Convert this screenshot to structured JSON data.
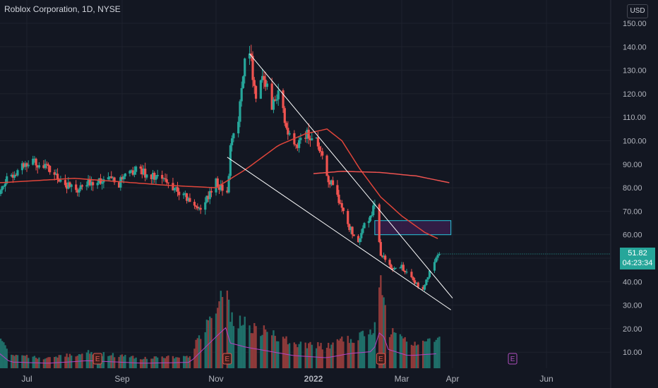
{
  "header": {
    "title": "Roblox Corporation, 1D, NYSE",
    "currency": "USD"
  },
  "price_badge": {
    "price": "51.82",
    "countdown": "04:23:34"
  },
  "colors": {
    "background": "#131722",
    "up": "#26a69a",
    "down": "#ef5350",
    "ma50": "#e0453a",
    "ma200": "#ef5350",
    "volume_ma": "#b543c4",
    "trendline": "#ffffff",
    "zone_fill": "#3a1f4f",
    "zone_stroke": "#26c6da",
    "earnings": "#e05a4e",
    "earnings_future": "#b04fc0"
  },
  "chart_data": {
    "type": "candlestick",
    "title": "Roblox Corporation, 1D, NYSE",
    "y_axis": {
      "ticks": [
        "10.00",
        "20.00",
        "30.00",
        "40.00",
        "50.00",
        "60.00",
        "70.00",
        "80.00",
        "90.00",
        "100.00",
        "110.00",
        "120.00",
        "130.00",
        "140.00",
        "150.00"
      ],
      "ylim": [
        5,
        155
      ]
    },
    "x_axis": {
      "ticks": [
        {
          "label": "Jul",
          "date": "2021-07-01"
        },
        {
          "label": "Sep",
          "date": "2021-09-01"
        },
        {
          "label": "Nov",
          "date": "2021-11-01"
        },
        {
          "label": "2022",
          "date": "2022-01-01"
        },
        {
          "label": "Mar",
          "date": "2022-03-01"
        },
        {
          "label": "Apr",
          "date": "2022-04-01"
        },
        {
          "label": "Jun",
          "date": "2022-06-01"
        }
      ]
    },
    "price_keypoints": [
      {
        "date": "2021-06-10",
        "close": 78
      },
      {
        "date": "2021-06-25",
        "close": 88
      },
      {
        "date": "2021-07-05",
        "close": 92
      },
      {
        "date": "2021-07-20",
        "close": 85
      },
      {
        "date": "2021-08-02",
        "close": 78
      },
      {
        "date": "2021-08-15",
        "close": 84
      },
      {
        "date": "2021-08-30",
        "close": 82
      },
      {
        "date": "2021-09-10",
        "close": 88
      },
      {
        "date": "2021-09-25",
        "close": 84
      },
      {
        "date": "2021-10-05",
        "close": 80
      },
      {
        "date": "2021-10-15",
        "close": 74
      },
      {
        "date": "2021-10-22",
        "close": 71
      },
      {
        "date": "2021-11-01",
        "close": 82
      },
      {
        "date": "2021-11-08",
        "close": 78
      },
      {
        "date": "2021-11-10",
        "close": 96
      },
      {
        "date": "2021-11-15",
        "close": 110
      },
      {
        "date": "2021-11-19",
        "close": 135
      },
      {
        "date": "2021-11-22",
        "close": 140
      },
      {
        "date": "2021-11-26",
        "close": 118
      },
      {
        "date": "2021-12-01",
        "close": 128
      },
      {
        "date": "2021-12-06",
        "close": 115
      },
      {
        "date": "2021-12-10",
        "close": 122
      },
      {
        "date": "2021-12-15",
        "close": 105
      },
      {
        "date": "2021-12-20",
        "close": 97
      },
      {
        "date": "2021-12-27",
        "close": 103
      },
      {
        "date": "2022-01-03",
        "close": 100
      },
      {
        "date": "2022-01-10",
        "close": 85
      },
      {
        "date": "2022-01-18",
        "close": 75
      },
      {
        "date": "2022-01-25",
        "close": 63
      },
      {
        "date": "2022-01-31",
        "close": 58
      },
      {
        "date": "2022-02-05",
        "close": 65
      },
      {
        "date": "2022-02-11",
        "close": 72
      },
      {
        "date": "2022-02-15",
        "close": 52
      },
      {
        "date": "2022-02-22",
        "close": 45
      },
      {
        "date": "2022-02-28",
        "close": 47
      },
      {
        "date": "2022-03-07",
        "close": 41
      },
      {
        "date": "2022-03-14",
        "close": 37
      },
      {
        "date": "2022-03-18",
        "close": 44
      },
      {
        "date": "2022-03-24",
        "close": 51.82
      }
    ],
    "ma50": [
      {
        "date": "2021-06-10",
        "value": 82
      },
      {
        "date": "2021-08-01",
        "value": 84
      },
      {
        "date": "2021-10-01",
        "value": 81
      },
      {
        "date": "2021-11-01",
        "value": 80
      },
      {
        "date": "2021-11-20",
        "value": 88
      },
      {
        "date": "2021-12-10",
        "value": 98
      },
      {
        "date": "2021-12-27",
        "value": 103
      },
      {
        "date": "2022-01-10",
        "value": 105
      },
      {
        "date": "2022-01-20",
        "value": 100
      },
      {
        "date": "2022-02-01",
        "value": 88
      },
      {
        "date": "2022-02-15",
        "value": 76
      },
      {
        "date": "2022-03-01",
        "value": 68
      },
      {
        "date": "2022-03-15",
        "value": 61
      },
      {
        "date": "2022-03-24",
        "value": 58
      }
    ],
    "ma200": [
      {
        "date": "2022-01-01",
        "value": 86
      },
      {
        "date": "2022-01-20",
        "value": 87
      },
      {
        "date": "2022-02-15",
        "value": 86.5
      },
      {
        "date": "2022-03-10",
        "value": 85
      },
      {
        "date": "2022-03-31",
        "value": 82
      }
    ],
    "trendlines": [
      {
        "from": {
          "date": "2021-11-22",
          "price": 137
        },
        "to": {
          "date": "2022-04-01",
          "price": 33
        }
      },
      {
        "from": {
          "date": "2021-11-08",
          "price": 93
        },
        "to": {
          "date": "2022-03-31",
          "price": 28
        }
      }
    ],
    "zone": {
      "date_from": "2022-02-11",
      "date_to": "2022-03-31",
      "price_low": 60,
      "price_high": 66
    },
    "volume_profile": [
      {
        "date": "2021-06-10",
        "v": 0.45
      },
      {
        "date": "2021-06-20",
        "v": 0.15
      },
      {
        "date": "2021-07-15",
        "v": 0.12
      },
      {
        "date": "2021-08-10",
        "v": 0.18
      },
      {
        "date": "2021-09-15",
        "v": 0.12
      },
      {
        "date": "2021-10-15",
        "v": 0.14
      },
      {
        "date": "2021-11-08",
        "v": 1.0
      },
      {
        "date": "2021-11-10",
        "v": 0.6
      },
      {
        "date": "2021-11-20",
        "v": 0.5
      },
      {
        "date": "2021-12-05",
        "v": 0.4
      },
      {
        "date": "2021-12-20",
        "v": 0.3
      },
      {
        "date": "2022-01-10",
        "v": 0.25
      },
      {
        "date": "2022-01-25",
        "v": 0.35
      },
      {
        "date": "2022-02-10",
        "v": 0.4
      },
      {
        "date": "2022-02-15",
        "v": 0.95
      },
      {
        "date": "2022-02-20",
        "v": 0.45
      },
      {
        "date": "2022-03-05",
        "v": 0.3
      },
      {
        "date": "2022-03-24",
        "v": 0.35
      }
    ],
    "earnings": [
      {
        "date": "2021-08-16",
        "label": "E",
        "status": "past"
      },
      {
        "date": "2021-11-08",
        "label": "E",
        "status": "past"
      },
      {
        "date": "2022-02-15",
        "label": "E",
        "status": "past"
      },
      {
        "date": "2022-05-10",
        "label": "E",
        "status": "upcoming"
      }
    ],
    "last_price": "51.82"
  }
}
